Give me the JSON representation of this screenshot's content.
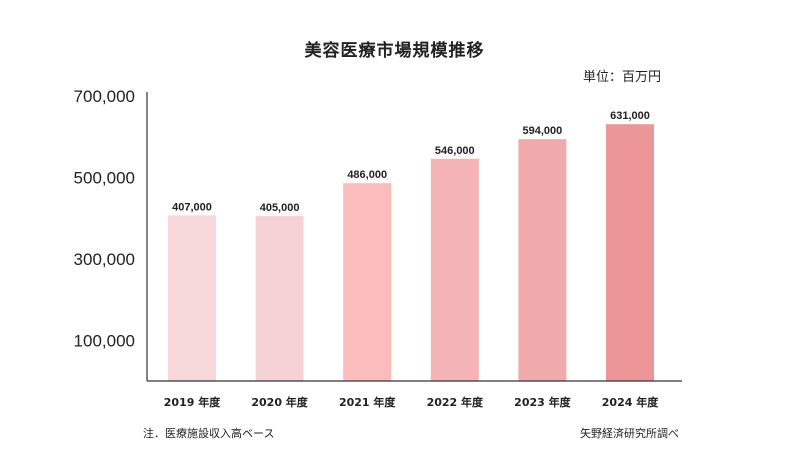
{
  "chart_data": {
    "type": "bar",
    "title": "美容医療市場規模推移",
    "unit": "単位：百万円",
    "categories": [
      "2019 年度",
      "2020 年度",
      "2021 年度",
      "2022 年度",
      "2023 年度",
      "2024 年度"
    ],
    "values": [
      407000,
      405000,
      486000,
      546000,
      594000,
      631000
    ],
    "value_labels": [
      "407,000",
      "405,000",
      "486,000",
      "546,000",
      "594,000",
      "631,000"
    ],
    "bar_colors": [
      "#f8d9db",
      "#f7d2d5",
      "#fbbcbe",
      "#f4b3b6",
      "#f0aaac",
      "#ec9698"
    ],
    "yticks": [
      100000,
      300000,
      500000,
      700000
    ],
    "ytick_labels": [
      "100,000",
      "300,000",
      "500,000",
      "700,000"
    ],
    "ylim": [
      0,
      710000
    ],
    "xlabel": "",
    "ylabel": "",
    "grid": false,
    "note": "注．医療施設収入高ベース",
    "source": "矢野経済研究所調べ"
  }
}
